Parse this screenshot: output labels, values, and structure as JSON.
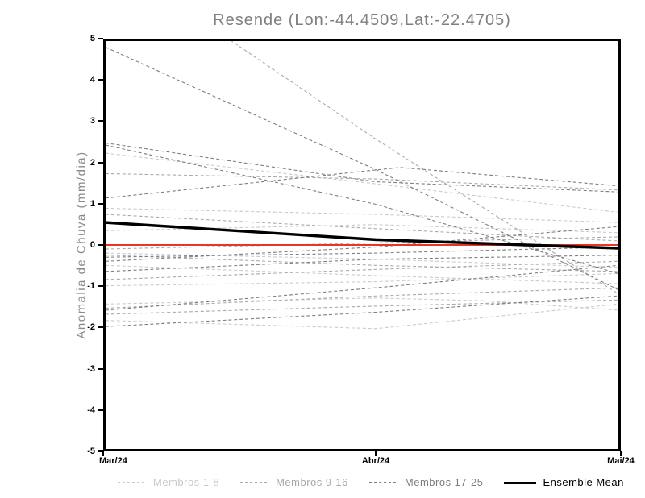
{
  "chart_data": {
    "type": "line",
    "title": "Resende (Lon:-44.4509,Lat:-22.4705)",
    "xlabel": "",
    "ylabel": "Anomalia de Chuva (mm/dia)",
    "ylim": [
      -5,
      5
    ],
    "y_ticks": [
      5,
      4,
      3,
      2,
      1,
      0,
      -1,
      -2,
      -3,
      -4,
      -5
    ],
    "x_ticks": [
      {
        "label": "Mar/24",
        "x": 0,
        "align": "corner-left"
      },
      {
        "label": "Abr/24",
        "x": 1,
        "align": "center"
      },
      {
        "label": "Mai/24",
        "x": 2,
        "align": "center"
      }
    ],
    "grid": false,
    "legend_position": "bottom",
    "zero_line": {
      "y": 0,
      "color": "#ed3327",
      "width": 2
    },
    "groups": [
      {
        "name": "Membros 1-8",
        "color": "#cacaca",
        "style": "dashed"
      },
      {
        "name": "Membros 9-16",
        "color": "#a9a9a9",
        "style": "dashed"
      },
      {
        "name": "Membros 17-25",
        "color": "#7d7d7d",
        "style": "dashed"
      }
    ],
    "members": [
      {
        "group": 0,
        "points": [
          [
            0,
            2.25
          ],
          [
            1,
            1.5
          ],
          [
            2,
            0.8
          ]
        ]
      },
      {
        "group": 0,
        "points": [
          [
            0,
            0.9
          ],
          [
            1,
            0.75
          ],
          [
            2,
            0.55
          ]
        ]
      },
      {
        "group": 0,
        "points": [
          [
            0,
            0.35
          ],
          [
            1,
            0.5
          ],
          [
            2,
            0.3
          ]
        ]
      },
      {
        "group": 0,
        "points": [
          [
            0,
            -0.2
          ],
          [
            1,
            -0.35
          ],
          [
            2,
            -0.55
          ]
        ]
      },
      {
        "group": 0,
        "points": [
          [
            0,
            -0.5
          ],
          [
            1,
            -0.75
          ],
          [
            2,
            -0.95
          ]
        ]
      },
      {
        "group": 0,
        "points": [
          [
            0,
            -1.0
          ],
          [
            1,
            -0.9
          ],
          [
            2,
            -0.7
          ]
        ]
      },
      {
        "group": 0,
        "points": [
          [
            0,
            -1.45
          ],
          [
            1,
            -1.3
          ],
          [
            1.45,
            -1.37
          ],
          [
            2,
            -1.6
          ]
        ]
      },
      {
        "group": 0,
        "points": [
          [
            0,
            -1.85
          ],
          [
            1,
            -2.05
          ],
          [
            2,
            -1.45
          ]
        ]
      },
      {
        "group": 1,
        "points": [
          [
            0,
            7.1
          ],
          [
            1,
            2.6
          ],
          [
            2,
            -1.2
          ]
        ]
      },
      {
        "group": 1,
        "points": [
          [
            0,
            1.75
          ],
          [
            1,
            1.62
          ],
          [
            2,
            1.35
          ]
        ]
      },
      {
        "group": 1,
        "points": [
          [
            0,
            0.75
          ],
          [
            1,
            0.4
          ],
          [
            2,
            0.1
          ]
        ]
      },
      {
        "group": 1,
        "points": [
          [
            0,
            -0.1
          ],
          [
            1,
            0.05
          ],
          [
            2,
            0.2
          ]
        ]
      },
      {
        "group": 1,
        "points": [
          [
            0,
            -0.25
          ],
          [
            1,
            -0.5
          ],
          [
            2,
            -0.65
          ]
        ]
      },
      {
        "group": 1,
        "points": [
          [
            0,
            -0.85
          ],
          [
            1,
            -0.6
          ],
          [
            2,
            -0.4
          ]
        ]
      },
      {
        "group": 1,
        "points": [
          [
            0,
            -1.55
          ],
          [
            1,
            -1.25
          ],
          [
            2,
            -1.05
          ]
        ]
      },
      {
        "group": 1,
        "points": [
          [
            0,
            -1.7
          ],
          [
            1,
            -1.5
          ],
          [
            2,
            -1.35
          ]
        ]
      },
      {
        "group": 2,
        "points": [
          [
            0,
            4.85
          ],
          [
            1,
            1.85
          ],
          [
            2,
            -1.1
          ]
        ]
      },
      {
        "group": 2,
        "points": [
          [
            0,
            2.45
          ],
          [
            1,
            1.0
          ],
          [
            2,
            -0.7
          ]
        ]
      },
      {
        "group": 2,
        "points": [
          [
            0,
            2.5
          ],
          [
            1,
            1.55
          ],
          [
            2,
            1.3
          ]
        ]
      },
      {
        "group": 2,
        "points": [
          [
            0,
            1.15
          ],
          [
            1.1,
            1.9
          ],
          [
            2,
            1.45
          ]
        ]
      },
      {
        "group": 2,
        "points": [
          [
            0,
            -0.3
          ],
          [
            1,
            -0.2
          ],
          [
            2,
            -0.05
          ]
        ]
      },
      {
        "group": 2,
        "points": [
          [
            0,
            -0.4
          ],
          [
            1,
            -0.05
          ],
          [
            2,
            0.45
          ]
        ]
      },
      {
        "group": 2,
        "points": [
          [
            0,
            -0.65
          ],
          [
            1,
            -0.35
          ],
          [
            2,
            -0.25
          ]
        ]
      },
      {
        "group": 2,
        "points": [
          [
            0,
            -1.6
          ],
          [
            1,
            -1.05
          ],
          [
            2,
            -0.5
          ]
        ]
      },
      {
        "group": 2,
        "points": [
          [
            0,
            -2.0
          ],
          [
            1,
            -1.65
          ],
          [
            2,
            -1.25
          ]
        ]
      }
    ],
    "ensemble_mean": {
      "label": "Ensemble Mean",
      "color": "#000000",
      "width": 3.5,
      "points": [
        [
          0,
          0.55
        ],
        [
          1,
          0.13
        ],
        [
          2,
          -0.08
        ]
      ]
    }
  },
  "legend": [
    {
      "label": "Membros 1-8",
      "color": "#cacaca",
      "style": "dashed"
    },
    {
      "label": "Membros 9-16",
      "color": "#a9a9a9",
      "style": "dashed"
    },
    {
      "label": "Membros 17-25",
      "color": "#7d7d7d",
      "style": "dashed"
    },
    {
      "label": "Ensemble Mean",
      "color": "#000000",
      "style": "solid"
    }
  ]
}
